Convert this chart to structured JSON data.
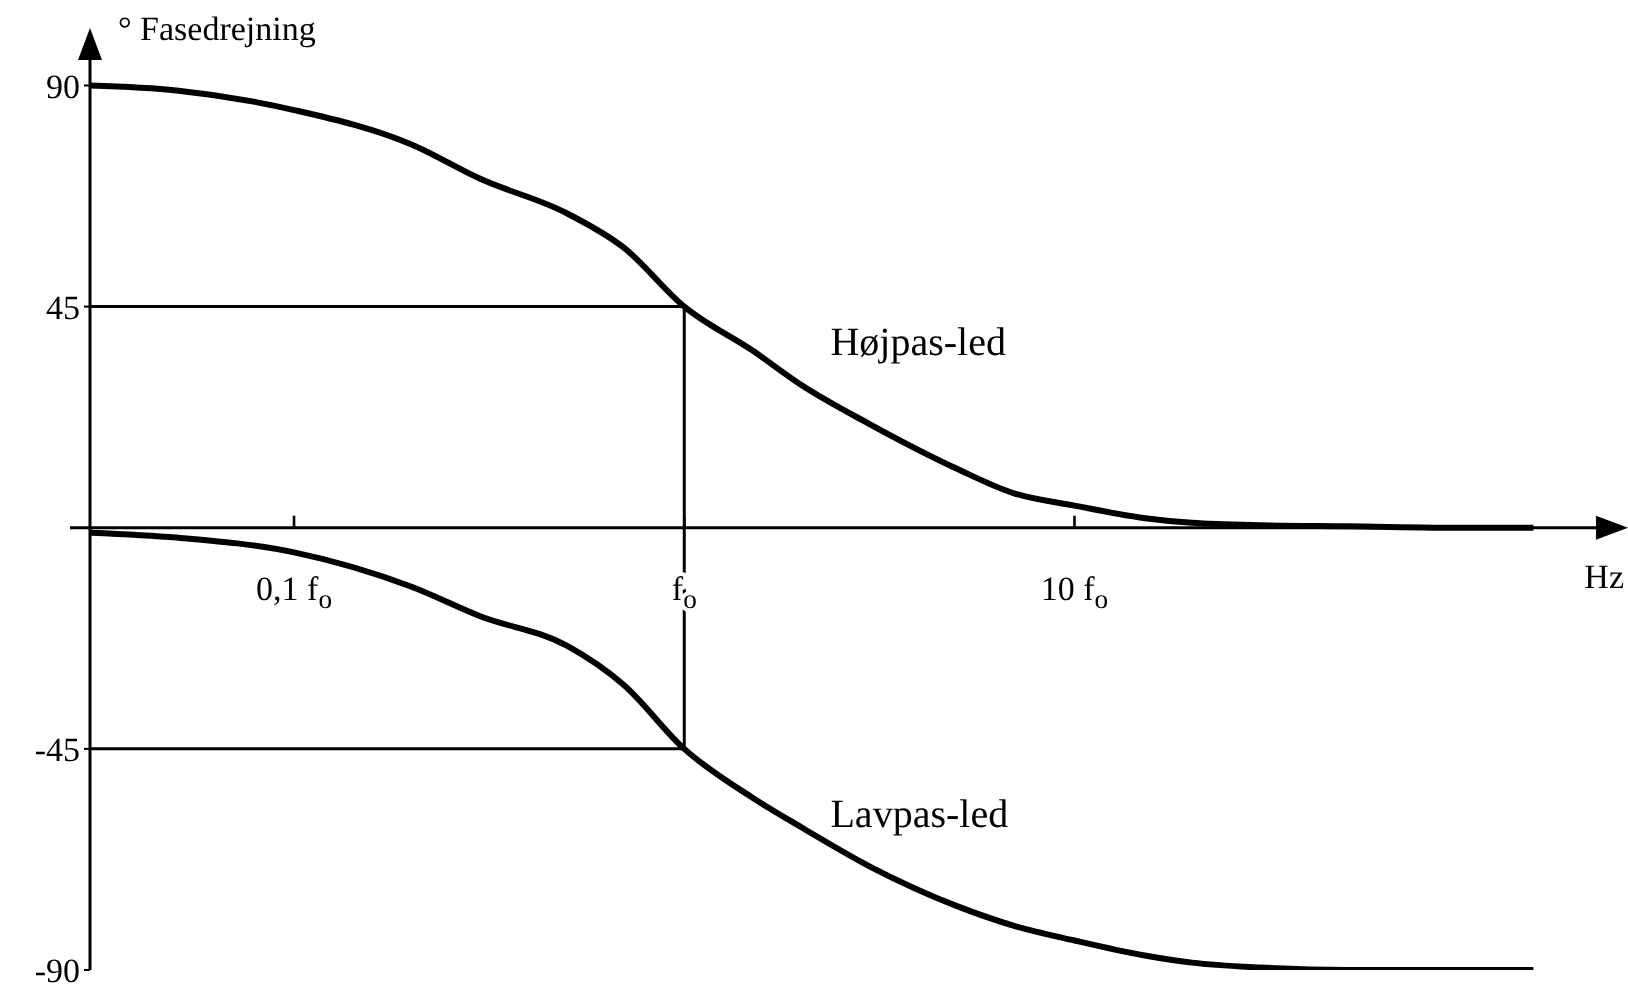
{
  "chart_data": {
    "type": "line",
    "ylabel": "° Fasedrejning",
    "xlabel": "Hz",
    "log": "x",
    "x": [
      0.03,
      0.05,
      0.1,
      0.2,
      0.3,
      0.5,
      0.7,
      1,
      1.5,
      2,
      3,
      5,
      7,
      10,
      15,
      20,
      30,
      50,
      100,
      150
    ],
    "series": [
      {
        "name": "Højpas-led",
        "color": "#000000",
        "values": [
          90,
          89,
          85,
          78,
          71,
          64,
          57,
          45,
          36,
          29,
          21,
          12,
          7,
          4.5,
          2,
          1,
          0.5,
          0.3,
          0,
          0
        ]
      },
      {
        "name": "Lavpas-led",
        "color": "#000000",
        "values": [
          -1,
          -2,
          -5,
          -12,
          -18,
          -24,
          -32,
          -45,
          -55,
          -61,
          -69,
          -77,
          -81,
          -84,
          -87,
          -88.5,
          -89.5,
          -90,
          -90,
          -90
        ]
      }
    ],
    "xlim": [
      0.03,
      250
    ],
    "xticks": [
      {
        "value": 0.1,
        "label": "0,1 f$_{o}$"
      },
      {
        "value": 1,
        "label": "f$_{o}$"
      },
      {
        "value": 10,
        "label": "10 f$_{o}$"
      }
    ],
    "ylim": [
      -90,
      96
    ],
    "yticks": [
      -90,
      -45,
      45,
      90
    ],
    "ref_lines": [
      {
        "axis": "y",
        "value": 45
      },
      {
        "axis": "y",
        "value": -45
      },
      {
        "axis": "x",
        "value": 1
      }
    ],
    "grid": false,
    "legend": false,
    "marker": "none",
    "line_style": "solid"
  }
}
